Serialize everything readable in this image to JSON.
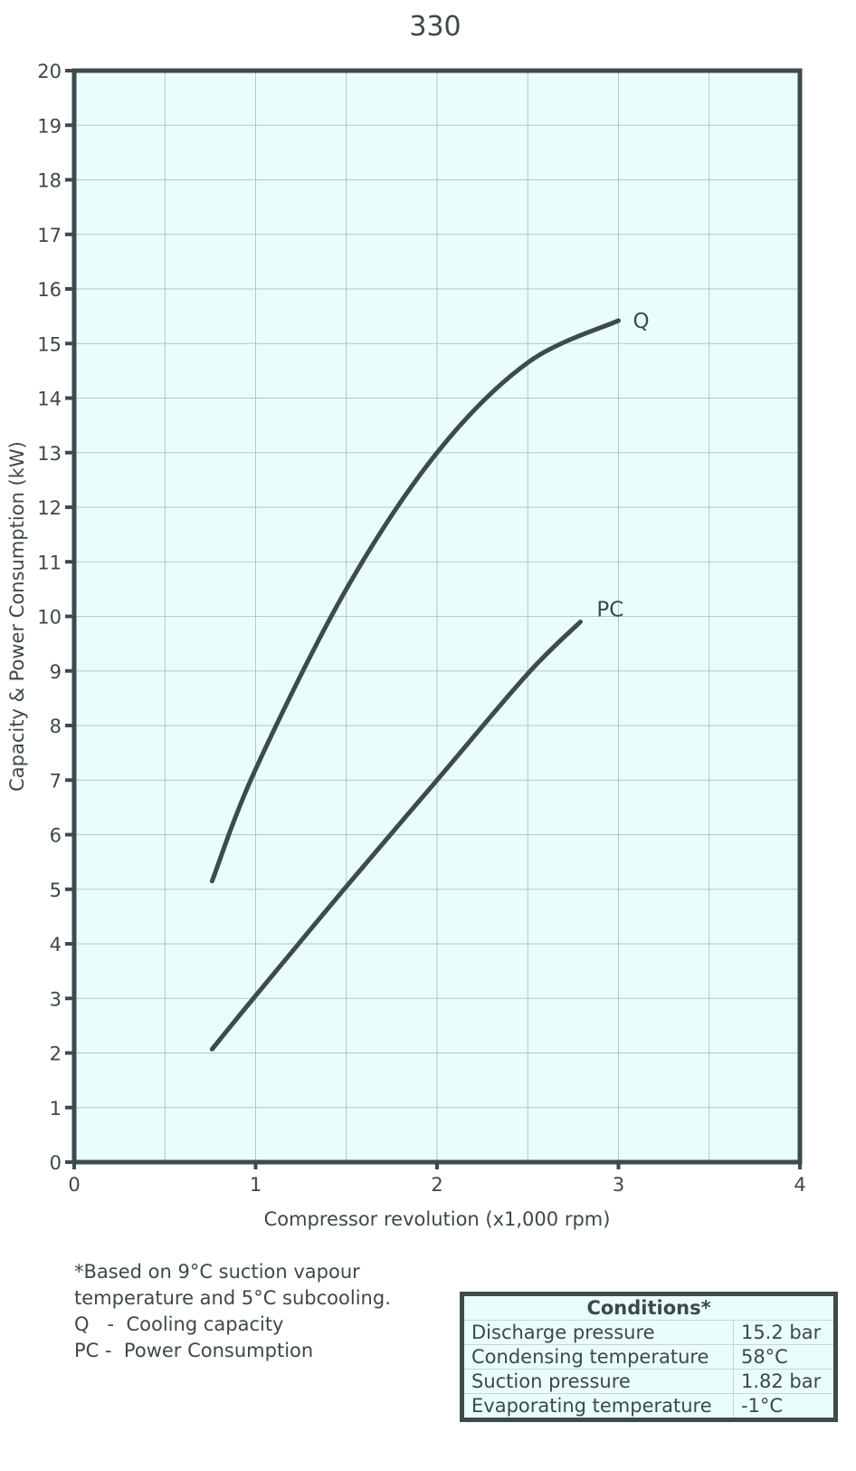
{
  "chart_data": {
    "type": "line",
    "title": "330",
    "xlabel": "Compressor revolution (x1,000 rpm)",
    "ylabel": "Capacity & Power Consumption (kW)",
    "xlim": [
      0,
      4
    ],
    "ylim": [
      0,
      20
    ],
    "xticks": [
      "0",
      "1",
      "2",
      "3",
      "4"
    ],
    "yticks": [
      "0",
      "1",
      "2",
      "3",
      "4",
      "5",
      "6",
      "7",
      "8",
      "9",
      "10",
      "11",
      "12",
      "13",
      "14",
      "15",
      "16",
      "17",
      "18",
      "19",
      "20"
    ],
    "grid": true,
    "background_color": "#eafdfd",
    "line_color": "#3d4b4b",
    "series": [
      {
        "name": "Q",
        "x": [
          0.76,
          1.0,
          1.5,
          2.0,
          2.5,
          3.0
        ],
        "y": [
          5.15,
          7.2,
          10.5,
          13.0,
          14.65,
          15.42
        ]
      },
      {
        "name": "PC",
        "x": [
          0.76,
          1.0,
          1.5,
          2.0,
          2.5,
          2.79
        ],
        "y": [
          2.07,
          3.05,
          5.05,
          7.0,
          8.95,
          9.9
        ]
      }
    ]
  },
  "notes": [
    "*Based on 9°C suction vapour",
    "temperature and 5°C subcooling.",
    "Q   -  Cooling capacity",
    "PC -  Power Consumption"
  ],
  "conditions": {
    "title": "Conditions*",
    "rows": [
      [
        "Discharge pressure",
        "15.2 bar"
      ],
      [
        "Condensing temperature",
        "58°C"
      ],
      [
        "Suction pressure",
        "1.82 bar"
      ],
      [
        "Evaporating temperature",
        "-1°C"
      ]
    ]
  }
}
